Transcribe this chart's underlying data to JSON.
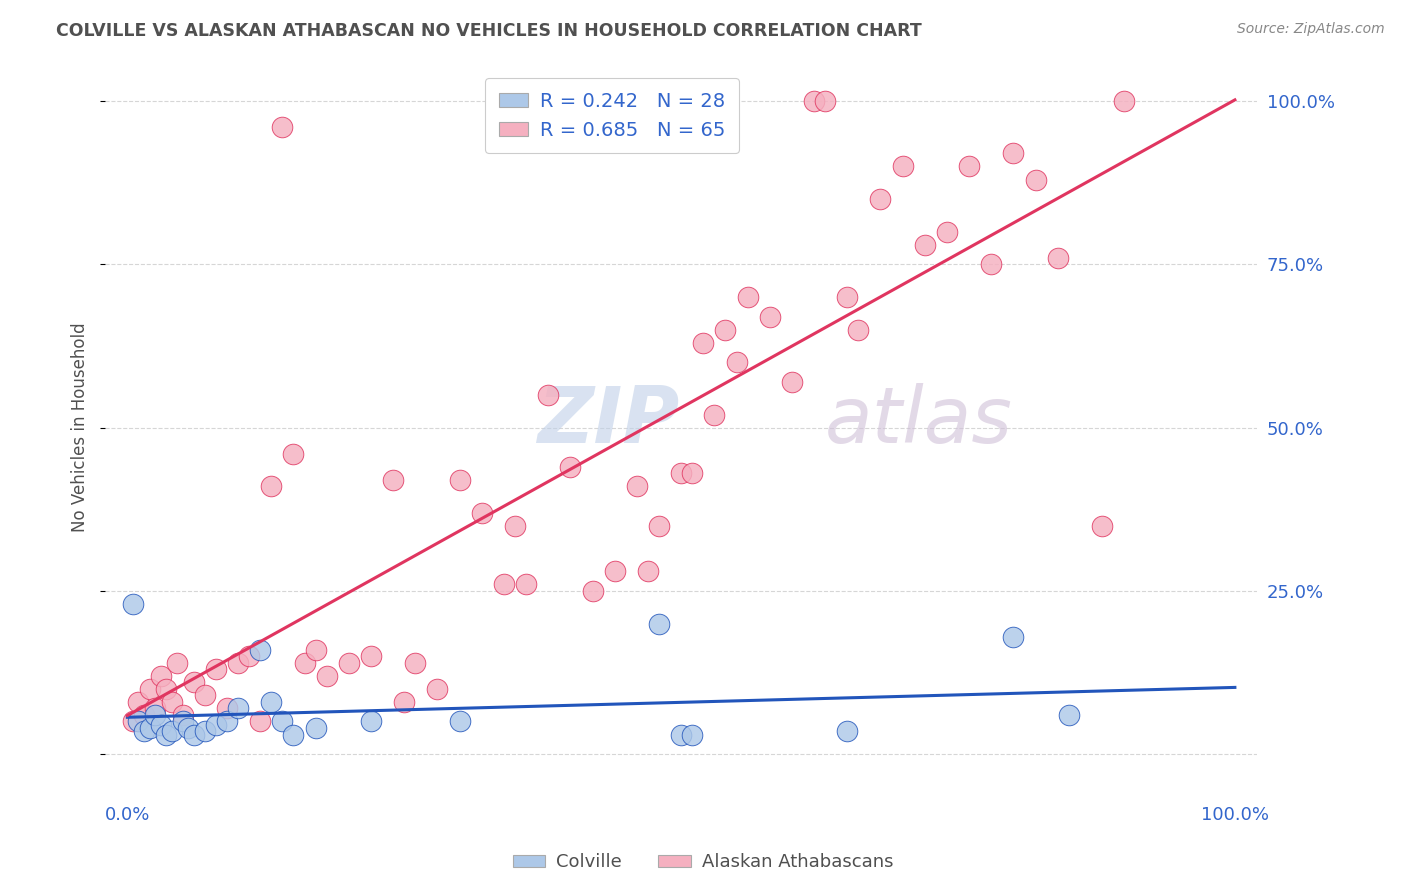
{
  "title": "COLVILLE VS ALASKAN ATHABASCAN NO VEHICLES IN HOUSEHOLD CORRELATION CHART",
  "source": "Source: ZipAtlas.com",
  "ylabel": "No Vehicles in Household",
  "colville_R": "0.242",
  "colville_N": "28",
  "athabascan_R": "0.685",
  "athabascan_N": "65",
  "colville_color": "#adc8e8",
  "athabascan_color": "#f5b0c0",
  "colville_line_color": "#2255bb",
  "athabascan_line_color": "#e03560",
  "watermark_zip_color": "#c5d5e8",
  "watermark_atlas_color": "#d8c8d8",
  "background_color": "#ffffff",
  "grid_color": "#cccccc",
  "title_color": "#505050",
  "axis_label_color": "#3366cc",
  "colville_scatter": [
    [
      0.5,
      23.0
    ],
    [
      1.0,
      5.0
    ],
    [
      1.5,
      3.5
    ],
    [
      2.0,
      4.0
    ],
    [
      2.5,
      6.0
    ],
    [
      3.0,
      4.5
    ],
    [
      3.5,
      3.0
    ],
    [
      4.0,
      3.5
    ],
    [
      5.0,
      5.0
    ],
    [
      5.5,
      4.0
    ],
    [
      6.0,
      3.0
    ],
    [
      7.0,
      3.5
    ],
    [
      8.0,
      4.5
    ],
    [
      9.0,
      5.0
    ],
    [
      10.0,
      7.0
    ],
    [
      12.0,
      16.0
    ],
    [
      13.0,
      8.0
    ],
    [
      14.0,
      5.0
    ],
    [
      15.0,
      3.0
    ],
    [
      17.0,
      4.0
    ],
    [
      22.0,
      5.0
    ],
    [
      30.0,
      5.0
    ],
    [
      48.0,
      20.0
    ],
    [
      50.0,
      3.0
    ],
    [
      51.0,
      3.0
    ],
    [
      65.0,
      3.5
    ],
    [
      80.0,
      18.0
    ],
    [
      85.0,
      6.0
    ]
  ],
  "athabascan_scatter": [
    [
      0.5,
      5.0
    ],
    [
      1.0,
      8.0
    ],
    [
      1.5,
      6.0
    ],
    [
      2.0,
      10.0
    ],
    [
      2.5,
      7.0
    ],
    [
      3.0,
      12.0
    ],
    [
      3.5,
      10.0
    ],
    [
      4.0,
      8.0
    ],
    [
      4.5,
      14.0
    ],
    [
      5.0,
      6.0
    ],
    [
      6.0,
      11.0
    ],
    [
      7.0,
      9.0
    ],
    [
      8.0,
      13.0
    ],
    [
      9.0,
      7.0
    ],
    [
      10.0,
      14.0
    ],
    [
      11.0,
      15.0
    ],
    [
      12.0,
      5.0
    ],
    [
      13.0,
      41.0
    ],
    [
      14.0,
      96.0
    ],
    [
      15.0,
      46.0
    ],
    [
      16.0,
      14.0
    ],
    [
      17.0,
      16.0
    ],
    [
      18.0,
      12.0
    ],
    [
      20.0,
      14.0
    ],
    [
      22.0,
      15.0
    ],
    [
      24.0,
      42.0
    ],
    [
      25.0,
      8.0
    ],
    [
      26.0,
      14.0
    ],
    [
      28.0,
      10.0
    ],
    [
      30.0,
      42.0
    ],
    [
      32.0,
      37.0
    ],
    [
      34.0,
      26.0
    ],
    [
      35.0,
      35.0
    ],
    [
      36.0,
      26.0
    ],
    [
      38.0,
      55.0
    ],
    [
      40.0,
      44.0
    ],
    [
      42.0,
      25.0
    ],
    [
      44.0,
      28.0
    ],
    [
      46.0,
      41.0
    ],
    [
      47.0,
      28.0
    ],
    [
      48.0,
      35.0
    ],
    [
      50.0,
      43.0
    ],
    [
      51.0,
      43.0
    ],
    [
      52.0,
      63.0
    ],
    [
      53.0,
      52.0
    ],
    [
      54.0,
      65.0
    ],
    [
      55.0,
      60.0
    ],
    [
      56.0,
      70.0
    ],
    [
      58.0,
      67.0
    ],
    [
      60.0,
      57.0
    ],
    [
      62.0,
      100.0
    ],
    [
      63.0,
      100.0
    ],
    [
      65.0,
      70.0
    ],
    [
      66.0,
      65.0
    ],
    [
      68.0,
      85.0
    ],
    [
      70.0,
      90.0
    ],
    [
      72.0,
      78.0
    ],
    [
      74.0,
      80.0
    ],
    [
      76.0,
      90.0
    ],
    [
      78.0,
      75.0
    ],
    [
      80.0,
      92.0
    ],
    [
      82.0,
      88.0
    ],
    [
      84.0,
      76.0
    ],
    [
      88.0,
      35.0
    ],
    [
      90.0,
      100.0
    ]
  ],
  "ylim": [
    -5,
    105
  ],
  "xlim": [
    -2,
    102
  ],
  "ytick_positions": [
    0,
    25,
    50,
    75,
    100
  ],
  "ytick_labels": [
    "",
    "25.0%",
    "50.0%",
    "75.0%",
    "100.0%"
  ],
  "xtick_positions": [
    0,
    100
  ],
  "xtick_labels": [
    "0.0%",
    "100.0%"
  ]
}
